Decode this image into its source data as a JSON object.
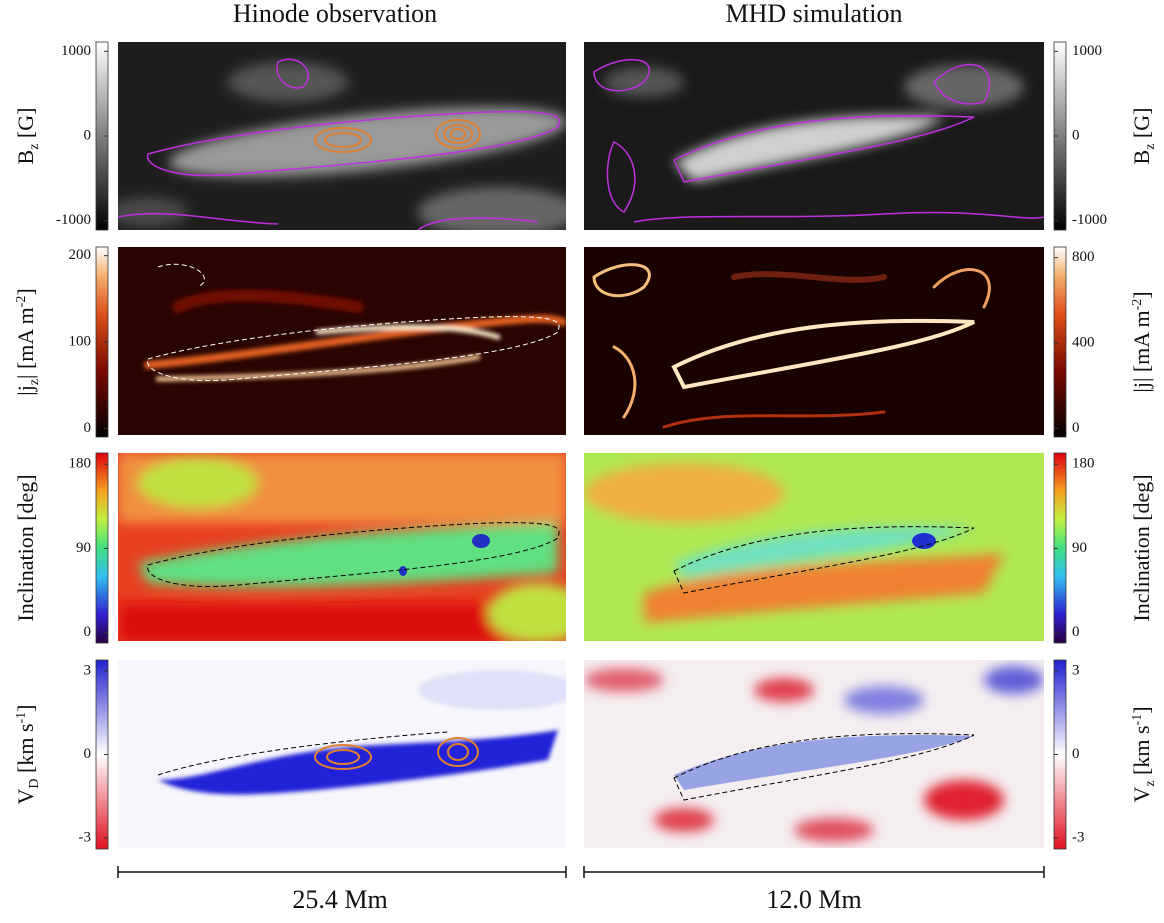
{
  "columns": [
    "Hinode observation",
    "MHD simulation"
  ],
  "rows": [
    {
      "left": {
        "label": [
          {
            "t": "B"
          },
          {
            "t": "z",
            "sub": true
          },
          {
            "t": " [G]"
          }
        ],
        "colormap": "gray",
        "lim": [
          -1110,
          1110
        ],
        "ticks": [
          1000,
          0,
          -1000
        ]
      },
      "right": {
        "label": [
          {
            "t": "B"
          },
          {
            "t": "z",
            "sub": true
          },
          {
            "t": " [G]"
          }
        ],
        "colormap": "gray",
        "lim": [
          -1110,
          1110
        ],
        "ticks": [
          1000,
          0,
          -1000
        ]
      }
    },
    {
      "left": {
        "label": [
          {
            "t": "|j"
          },
          {
            "t": "z",
            "sub": true
          },
          {
            "t": "| [mA m"
          },
          {
            "t": "-2",
            "sup": true
          },
          {
            "t": "]"
          }
        ],
        "colormap": "heat",
        "lim": [
          -10,
          210
        ],
        "ticks": [
          200,
          100,
          0
        ]
      },
      "right": {
        "label": [
          {
            "t": "|j| [mA m"
          },
          {
            "t": "-2",
            "sup": true
          },
          {
            "t": "]"
          }
        ],
        "colormap": "heat",
        "lim": [
          -40,
          850
        ],
        "ticks": [
          800,
          400,
          0
        ]
      }
    },
    {
      "left": {
        "label": [
          {
            "t": "Inclination [deg]"
          }
        ],
        "colormap": "rainbow",
        "lim": [
          -11,
          192
        ],
        "ticks": [
          180,
          90,
          0
        ]
      },
      "right": {
        "label": [
          {
            "t": "Inclination [deg]"
          }
        ],
        "colormap": "rainbow",
        "lim": [
          -11,
          192
        ],
        "ticks": [
          180,
          90,
          0
        ]
      }
    },
    {
      "left": {
        "label": [
          {
            "t": "V"
          },
          {
            "t": "D",
            "sub": true
          },
          {
            "t": " [km s"
          },
          {
            "t": "-1",
            "sup": true
          },
          {
            "t": "]"
          }
        ],
        "colormap": "bwr",
        "lim": [
          -3.4,
          3.4
        ],
        "ticks": [
          3,
          0,
          -3
        ]
      },
      "right": {
        "label": [
          {
            "t": "V"
          },
          {
            "t": "z",
            "sub": true
          },
          {
            "t": " [km s"
          },
          {
            "t": "-1",
            "sup": true
          },
          {
            "t": "]"
          }
        ],
        "colormap": "bwr",
        "lim": [
          -3.4,
          3.4
        ],
        "ticks": [
          3,
          0,
          -3
        ]
      }
    }
  ],
  "scale_bars": [
    "25.4 Mm",
    "12.0 Mm"
  ]
}
